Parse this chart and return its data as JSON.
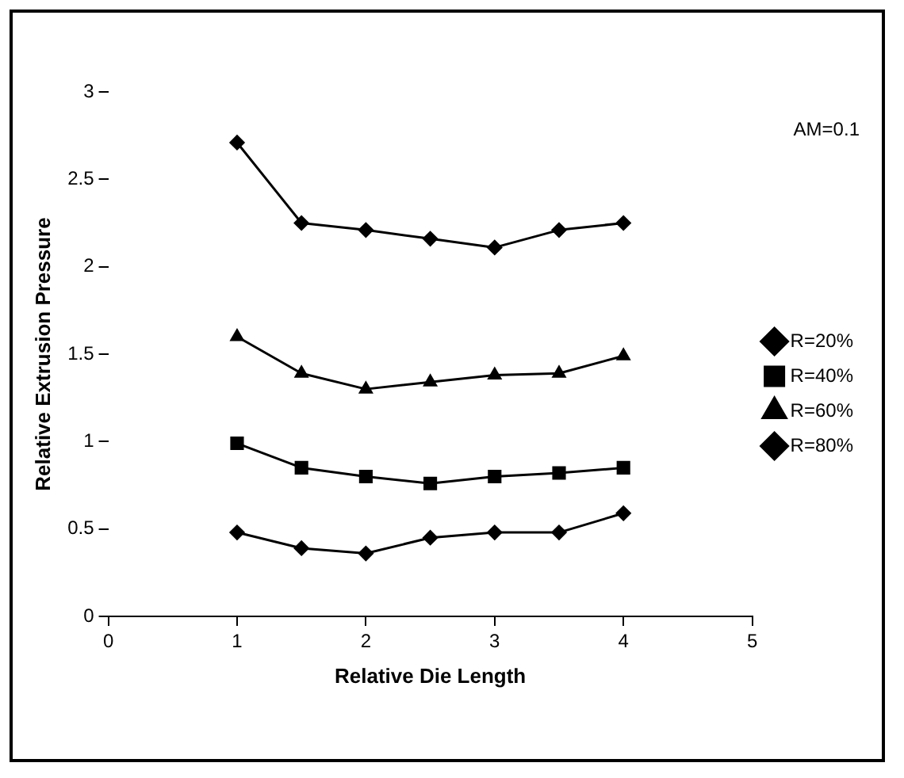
{
  "chart_data": {
    "type": "line",
    "xlabel": "Relative Die Length",
    "ylabel": "Relative Extrusion Pressure",
    "annotations": [
      "AM=0.1"
    ],
    "x": [
      1,
      1.5,
      2,
      2.5,
      3,
      3.5,
      4
    ],
    "series": [
      {
        "name": "R=20%",
        "color": "#000000",
        "marker": "diamond",
        "values": [
          0.48,
          0.39,
          0.36,
          0.45,
          0.48,
          0.48,
          0.59
        ]
      },
      {
        "name": "R=40%",
        "color": "#000000",
        "marker": "square",
        "values": [
          0.99,
          0.85,
          0.8,
          0.76,
          0.8,
          0.82,
          0.85
        ]
      },
      {
        "name": "R=60%",
        "color": "#000000",
        "marker": "triangle",
        "values": [
          1.6,
          1.39,
          1.3,
          1.34,
          1.38,
          1.39,
          1.49
        ]
      },
      {
        "name": "R=80%",
        "color": "#000000",
        "marker": "diamond",
        "values": [
          2.71,
          2.25,
          2.21,
          2.16,
          2.11,
          2.21,
          2.25
        ]
      }
    ],
    "xlim": [
      0,
      5
    ],
    "xticks": [
      0,
      1,
      2,
      3,
      4,
      5
    ],
    "ylim": [
      0,
      3
    ],
    "yticks": [
      0,
      0.5,
      1,
      1.5,
      2,
      2.5,
      3
    ],
    "grid": false,
    "legend": "right",
    "line_style": "solid"
  }
}
